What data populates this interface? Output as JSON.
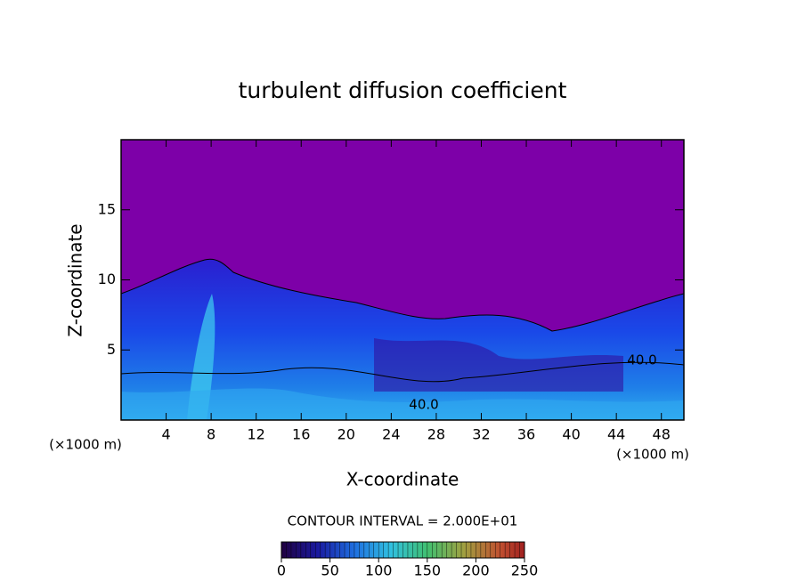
{
  "chart_data": {
    "type": "heatmap",
    "title": "turbulent diffusion coefficient",
    "x_label": "X-coordinate",
    "y_label": "Z-coordinate",
    "x_unit": "(×1000 m)",
    "y_unit": "(×1000 m)",
    "xlim": [
      0,
      50
    ],
    "ylim": [
      0,
      20
    ],
    "xticks": [
      4,
      8,
      12,
      16,
      20,
      24,
      28,
      32,
      36,
      40,
      44,
      48
    ],
    "yticks": [
      5,
      10,
      15
    ],
    "contour_labels": [
      "40.0",
      "40.0"
    ],
    "note": "CONTOUR INTERVAL = 2.000E+01",
    "colorbar": {
      "lim": [
        0,
        250
      ],
      "ticks": [
        0,
        50,
        100,
        150,
        200,
        250
      ]
    }
  }
}
